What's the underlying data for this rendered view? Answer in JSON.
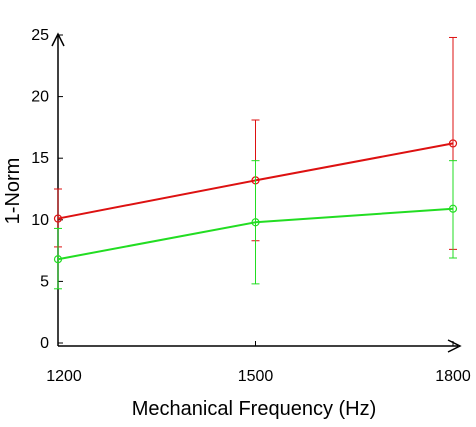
{
  "chart_data": {
    "type": "line",
    "xlabel": "Mechanical Frequency (Hz)",
    "ylabel": "1-Norm",
    "x": [
      1200,
      1500,
      1800
    ],
    "xticks": [
      "1200",
      "1500",
      "1800"
    ],
    "yticks": [
      "0",
      "5",
      "10",
      "15",
      "20",
      "25"
    ],
    "ylim": [
      0,
      25
    ],
    "grid": false,
    "series": [
      {
        "color": "#dd1111",
        "marker": "circle",
        "values": [
          10.1,
          13.2,
          16.2
        ],
        "err_low": [
          7.8,
          8.3,
          7.6
        ],
        "err_high": [
          12.5,
          18.1,
          24.8
        ]
      },
      {
        "color": "#22dd22",
        "marker": "circle",
        "values": [
          6.8,
          9.8,
          10.9
        ],
        "err_low": [
          4.4,
          4.8,
          6.9
        ],
        "err_high": [
          9.3,
          14.8,
          14.8
        ]
      }
    ]
  }
}
